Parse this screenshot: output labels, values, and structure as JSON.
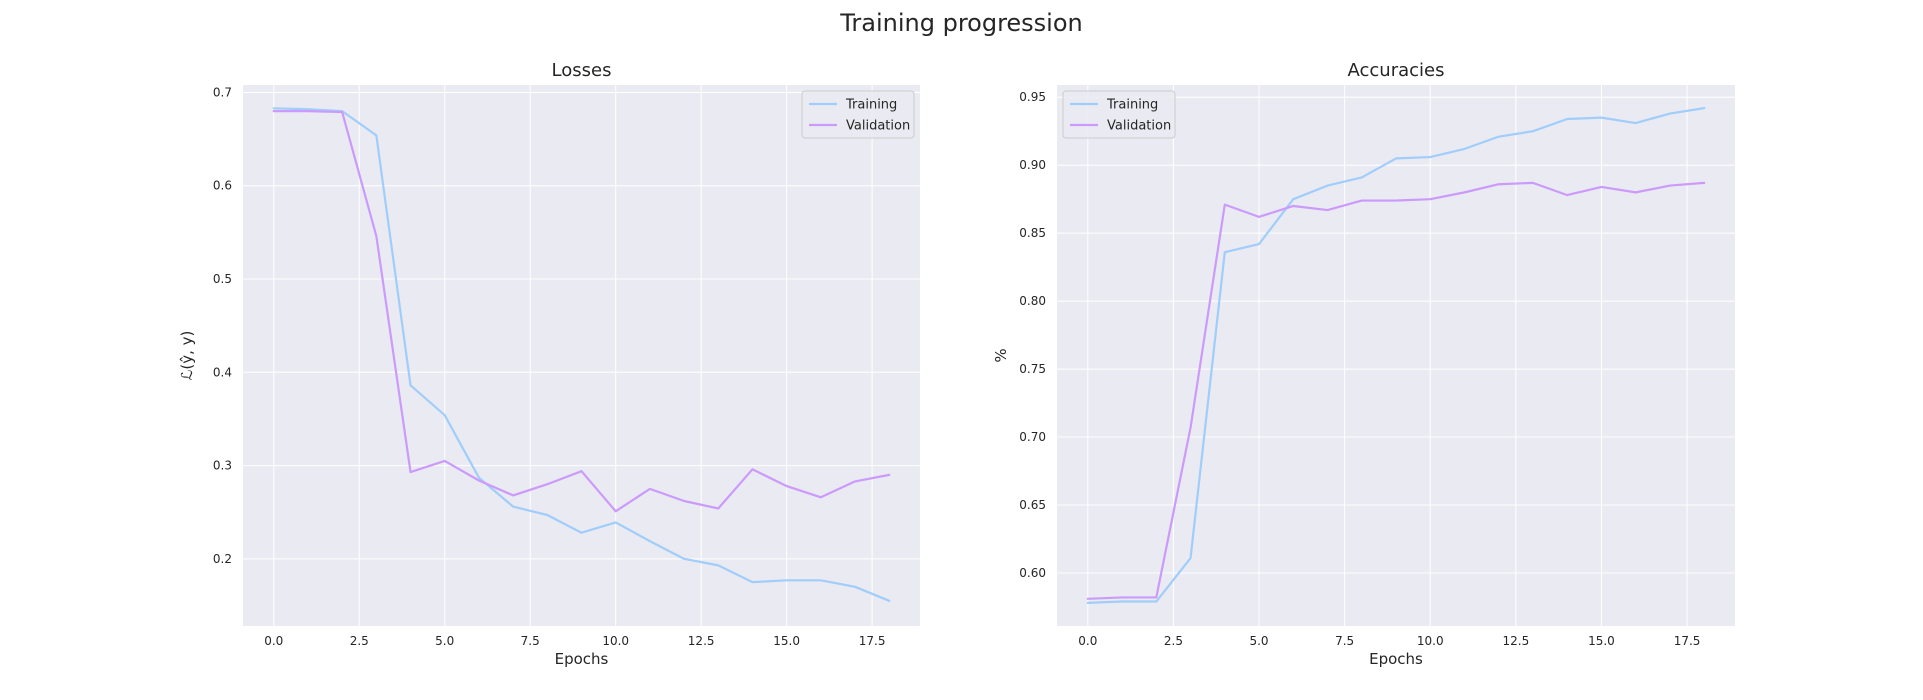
{
  "figure": {
    "title": "Training progression"
  },
  "colors": {
    "training": "#a1cdfa",
    "validation": "#cb9afa",
    "plot_bg": "#eaeaf2",
    "grid": "#ffffff"
  },
  "chart_data": [
    {
      "type": "line",
      "title": "Losses",
      "xlabel": "Epochs",
      "ylabel": "ℒ(ŷ, y)",
      "xlim": [
        -0.9,
        18.9
      ],
      "ylim": [
        0.128,
        0.708
      ],
      "xticks": [
        0.0,
        2.5,
        5.0,
        7.5,
        10.0,
        12.5,
        15.0,
        17.5
      ],
      "xtick_labels": [
        "0.0",
        "2.5",
        "5.0",
        "7.5",
        "10.0",
        "12.5",
        "15.0",
        "17.5"
      ],
      "yticks": [
        0.2,
        0.3,
        0.4,
        0.5,
        0.6,
        0.7
      ],
      "ytick_labels": [
        "0.2",
        "0.3",
        "0.4",
        "0.5",
        "0.6",
        "0.7"
      ],
      "grid": true,
      "legend": "upper right",
      "x": [
        0,
        1,
        2,
        3,
        4,
        5,
        6,
        7,
        8,
        9,
        10,
        11,
        12,
        13,
        14,
        15,
        16,
        17,
        18
      ],
      "series": [
        {
          "name": "Training",
          "color": "#a1cdfa",
          "values": [
            0.683,
            0.682,
            0.68,
            0.654,
            0.386,
            0.354,
            0.287,
            0.256,
            0.247,
            0.228,
            0.239,
            0.219,
            0.2,
            0.193,
            0.175,
            0.177,
            0.177,
            0.17,
            0.155
          ]
        },
        {
          "name": "Validation",
          "color": "#cb9afa",
          "values": [
            0.68,
            0.68,
            0.679,
            0.546,
            0.293,
            0.305,
            0.284,
            0.268,
            0.28,
            0.294,
            0.251,
            0.275,
            0.262,
            0.254,
            0.296,
            0.278,
            0.266,
            0.283,
            0.29
          ]
        }
      ]
    },
    {
      "type": "line",
      "title": "Accuracies",
      "xlabel": "Epochs",
      "ylabel": "%",
      "xlim": [
        -0.9,
        18.9
      ],
      "ylim": [
        0.561,
        0.959
      ],
      "xticks": [
        0.0,
        2.5,
        5.0,
        7.5,
        10.0,
        12.5,
        15.0,
        17.5
      ],
      "xtick_labels": [
        "0.0",
        "2.5",
        "5.0",
        "7.5",
        "10.0",
        "12.5",
        "15.0",
        "17.5"
      ],
      "yticks": [
        0.6,
        0.65,
        0.7,
        0.75,
        0.8,
        0.85,
        0.9,
        0.95
      ],
      "ytick_labels": [
        "0.60",
        "0.65",
        "0.70",
        "0.75",
        "0.80",
        "0.85",
        "0.90",
        "0.95"
      ],
      "grid": true,
      "legend": "upper left",
      "x": [
        0,
        1,
        2,
        3,
        4,
        5,
        6,
        7,
        8,
        9,
        10,
        11,
        12,
        13,
        14,
        15,
        16,
        17,
        18
      ],
      "series": [
        {
          "name": "Training",
          "color": "#a1cdfa",
          "values": [
            0.578,
            0.579,
            0.579,
            0.611,
            0.836,
            0.842,
            0.875,
            0.885,
            0.891,
            0.905,
            0.906,
            0.912,
            0.921,
            0.925,
            0.934,
            0.935,
            0.931,
            0.938,
            0.942
          ]
        },
        {
          "name": "Validation",
          "color": "#cb9afa",
          "values": [
            0.581,
            0.582,
            0.582,
            0.707,
            0.871,
            0.862,
            0.87,
            0.867,
            0.874,
            0.874,
            0.875,
            0.88,
            0.886,
            0.887,
            0.878,
            0.884,
            0.88,
            0.885,
            0.887
          ]
        }
      ]
    }
  ]
}
